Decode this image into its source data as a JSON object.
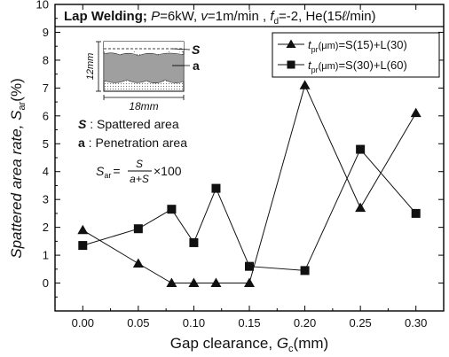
{
  "chart_data": {
    "type": "line",
    "title_parts": {
      "bold": "Lap Welding;",
      "p_var": "P",
      "p_val": "=6kW,",
      "v_var": "v",
      "v_val": "=1m/min ,",
      "f_var": "f",
      "f_sub": "d",
      "f_val": "=-2, He(15",
      "l_symbol": "ℓ",
      "tail": "/min)"
    },
    "xlabel_parts": {
      "main": "Gap clearance, ",
      "var": "G",
      "sub": "c",
      "unit": "(mm)"
    },
    "ylabel_parts": {
      "main": "Spattered area rate, ",
      "var": "S",
      "sub": "ar",
      "unit": "(%)"
    },
    "xlim": [
      -0.025,
      0.325
    ],
    "ylim": [
      -1,
      10
    ],
    "x_ticks": [
      "0.00",
      "0.05",
      "0.10",
      "0.15",
      "0.20",
      "0.25",
      "0.30"
    ],
    "y_ticks": [
      "0",
      "1",
      "2",
      "3",
      "4",
      "5",
      "6",
      "7",
      "8",
      "9",
      "10"
    ],
    "grid": false,
    "legend_position": "top-right",
    "series": [
      {
        "legend": {
          "var": "t",
          "sub": "pr",
          "unit": "(μm)",
          "eq": "=S(15)+L(30)"
        },
        "marker": "triangle",
        "x": [
          0.0,
          0.05,
          0.08,
          0.1,
          0.12,
          0.15,
          0.2,
          0.25,
          0.3
        ],
        "y": [
          1.9,
          0.7,
          0.0,
          0.0,
          0.0,
          0.0,
          7.1,
          2.7,
          6.1
        ]
      },
      {
        "legend": {
          "var": "t",
          "sub": "pr",
          "unit": "(μm)",
          "eq": "=S(30)+L(60)"
        },
        "marker": "square",
        "x": [
          0.0,
          0.05,
          0.08,
          0.1,
          0.12,
          0.15,
          0.2,
          0.25,
          0.3
        ],
        "y": [
          1.35,
          1.95,
          2.65,
          1.45,
          3.4,
          0.6,
          0.45,
          4.8,
          2.5
        ]
      }
    ],
    "inset": {
      "label_s": "S",
      "label_a": "a",
      "height_label": "12mm",
      "width_label": "18mm"
    },
    "annotations": {
      "s_key": "S",
      "s_desc": " : Spattered area",
      "a_key": "a",
      "a_desc": " : Penetration area",
      "formula_lhs_var": "S",
      "formula_lhs_sub": "ar",
      "formula_eq": "=",
      "formula_num": "S",
      "formula_den": "a+S",
      "formula_tail": "×100"
    }
  }
}
